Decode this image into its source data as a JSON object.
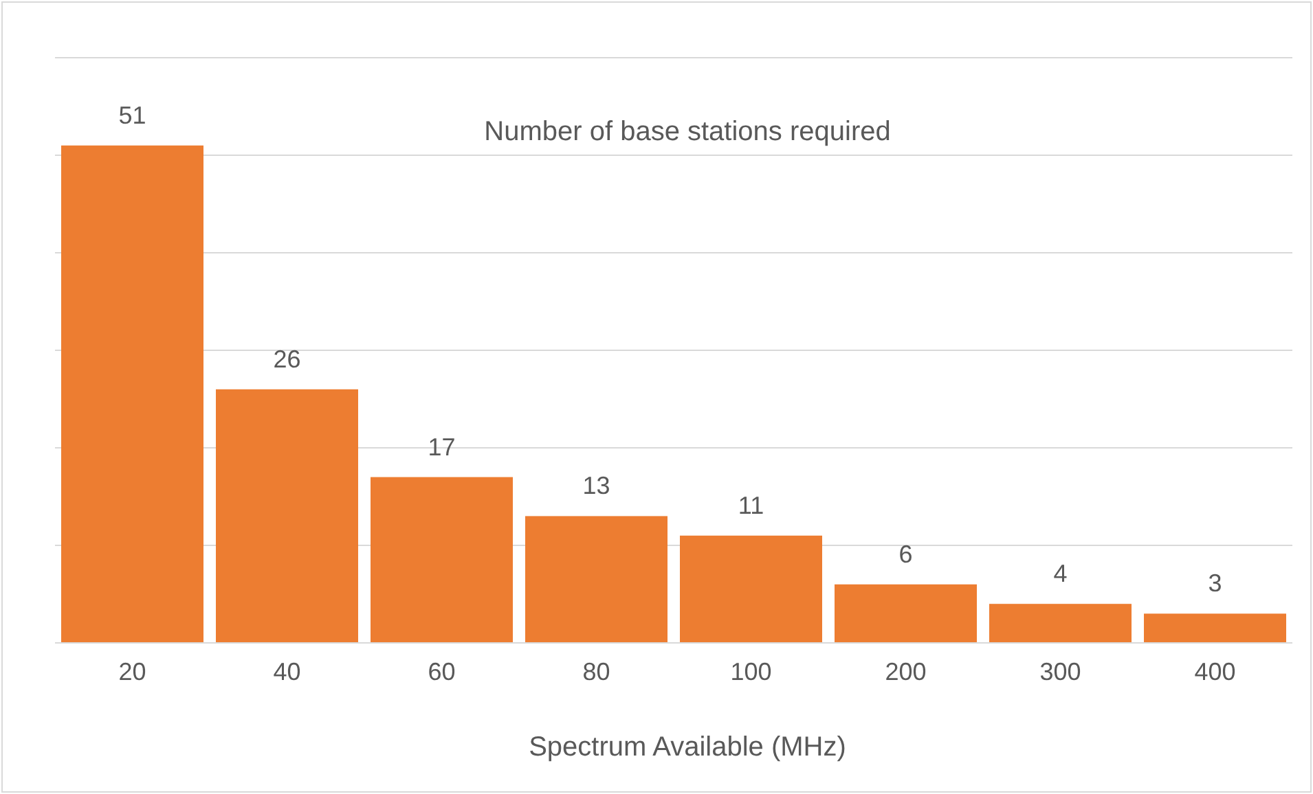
{
  "chart_data": {
    "type": "bar",
    "title": "Number of base stations required",
    "xlabel": "Spectrum Available (MHz)",
    "categories": [
      "20",
      "40",
      "60",
      "80",
      "100",
      "200",
      "300",
      "400"
    ],
    "values": [
      51,
      26,
      17,
      13,
      11,
      6,
      4,
      3
    ],
    "color": "#ed7d31",
    "ylim": [
      0,
      60
    ],
    "yticks": [
      {
        "value": 0,
        "label": null
      },
      {
        "value": 10,
        "label": null
      },
      {
        "value": 20,
        "label": null
      },
      {
        "value": 30,
        "label": null
      },
      {
        "value": 40,
        "label": null
      },
      {
        "value": 50,
        "label": null
      },
      {
        "value": 60,
        "label": null
      }
    ],
    "grid": "y",
    "tick_labels": "x",
    "data_labels": true
  }
}
